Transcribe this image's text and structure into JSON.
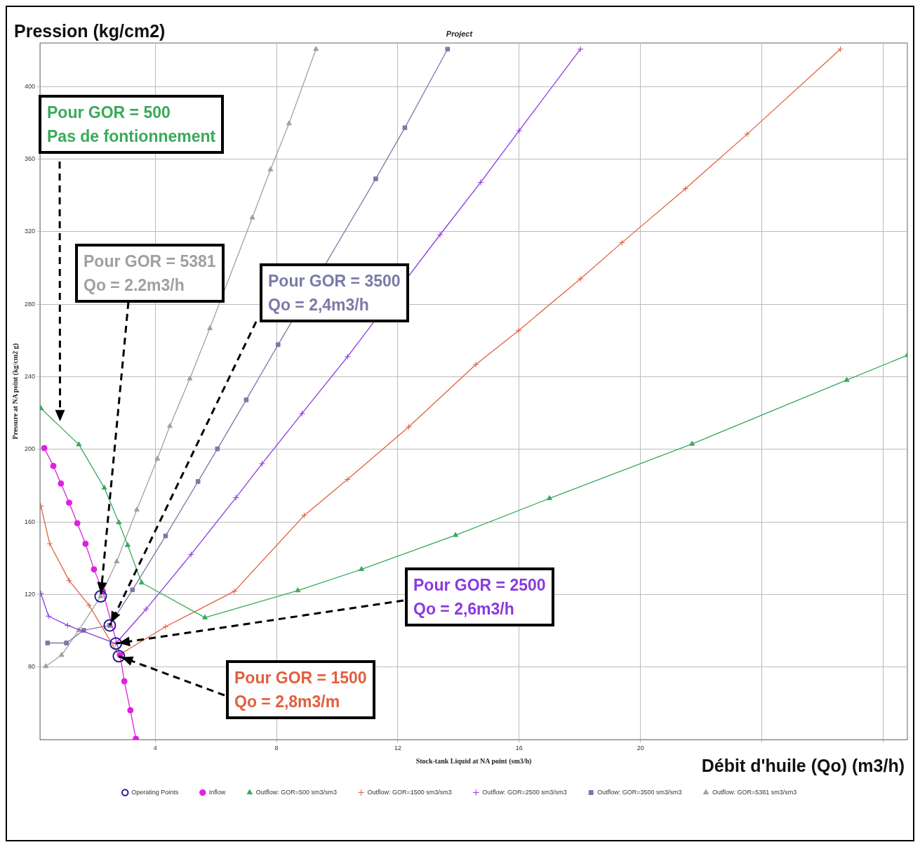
{
  "chart_data": {
    "type": "line",
    "title": "Project",
    "xlabel": "Stock-tank Liquid at NA point (sm3/h)",
    "ylabel": "Pressure at NA point (kg/cm2 g)",
    "xlim": [
      0.2,
      28.8
    ],
    "xticks": [
      4,
      8,
      12,
      16,
      20,
      {
        "value": 24,
        "label": null
      },
      {
        "value": 28,
        "label": null
      }
    ],
    "ylim": [
      40,
      424
    ],
    "yticks": [
      80,
      120,
      160,
      200,
      240,
      280,
      320,
      360,
      400
    ],
    "grid": true,
    "legend": "bottom",
    "line_style": "solid",
    "series": [
      {
        "name": "Operating Points",
        "type": "scatter",
        "marker": "circle",
        "color": "#20208f",
        "x": [
          2.2,
          2.5,
          2.7,
          2.8
        ],
        "values": [
          119,
          103,
          93,
          86
        ]
      },
      {
        "name": "Inflow",
        "marker": "circle",
        "color": "#e020e0",
        "x": [
          0.34,
          0.64,
          0.89,
          1.16,
          1.43,
          1.7,
          1.98,
          2.27,
          2.84,
          2.98,
          3.18,
          3.36
        ],
        "values": [
          200.7,
          190.9,
          181.2,
          170.6,
          159.3,
          148,
          133.9,
          121.8,
          86.6,
          72.2,
          56.2,
          40.5
        ]
      },
      {
        "name": "Outflow: GOR=500 sm3/sm3",
        "marker": "triangle",
        "color": "#3aaa5a",
        "x": [
          0.23,
          1.48,
          2.32,
          2.8,
          3.09,
          3.55,
          5.64,
          8.7,
          10.8,
          13.9,
          17,
          21.7,
          26.8,
          28.8
        ],
        "values": [
          222.6,
          202.7,
          178.8,
          159.7,
          147.2,
          126.5,
          107.3,
          122.2,
          133.9,
          152.7,
          173,
          203,
          238.2,
          251.9
        ]
      },
      {
        "name": "Outflow: GOR=1500 sm3/sm3",
        "marker": "cross",
        "color": "#e06040",
        "x": [
          0.23,
          0.52,
          1.16,
          1.82,
          2.8,
          4.34,
          6.61,
          8.91,
          10.34,
          12.36,
          14.57,
          15.98,
          18.02,
          19.39,
          21.48,
          23.52,
          26.59
        ],
        "values": [
          168.7,
          148,
          127.7,
          114,
          86.6,
          102.3,
          121.8,
          163.6,
          183.5,
          212.4,
          246.8,
          265.5,
          294,
          314,
          343.7,
          373.8,
          420.6
        ]
      },
      {
        "name": "Outflow: GOR=2500 sm3/sm3",
        "marker": "cross",
        "color": "#8a3ae0",
        "x": [
          0.23,
          0.48,
          1.11,
          2.7,
          3.7,
          5.18,
          6.66,
          7.52,
          8.84,
          10.34,
          13.39,
          14.73,
          16,
          18.02
        ],
        "values": [
          120.6,
          108.1,
          103,
          93,
          112,
          142.1,
          173.4,
          192.1,
          219.8,
          251.1,
          318.3,
          347.2,
          375.7,
          420.6
        ]
      },
      {
        "name": "Outflow: GOR=3500 sm3/sm3",
        "marker": "square",
        "color": "#7a7aa8",
        "x": [
          0.45,
          1.07,
          1.64,
          2.5,
          3.25,
          4.34,
          5.41,
          6.05,
          7,
          8.05,
          11.27,
          12.23,
          13.64
        ],
        "values": [
          93.3,
          93.3,
          100.3,
          103,
          122.6,
          152.3,
          182.3,
          200.3,
          227.3,
          257.7,
          349.1,
          377.3,
          420.6
        ]
      },
      {
        "name": "Outflow: GOR=5381 sm3/sm3",
        "marker": "triangle",
        "color": "#a0a0a0",
        "x": [
          0.39,
          0.91,
          1.48,
          2.2,
          2.73,
          3.39,
          4.07,
          4.48,
          5.14,
          5.8,
          7.2,
          7.8,
          8.41,
          9.3
        ],
        "values": [
          80.4,
          86.6,
          100.3,
          119,
          138.2,
          166.7,
          194.8,
          212.8,
          239,
          266.7,
          327.7,
          354.2,
          379.6,
          420.6
        ]
      }
    ],
    "annotations": [
      "Pression (kg/cm2)",
      "Débit d'huile (Qo) (m3/h)",
      {
        "text": "Pour GOR = 500\nPas de fontionnement",
        "x": 0.86,
        "y": 214
      },
      {
        "text": "Pour GOR = 5381\nQo = 2.2m3/h",
        "x": 2.2,
        "y": 119
      },
      {
        "text": "Pour GOR = 3500\nQo = 2,4m3/h",
        "x": 2.5,
        "y": 103
      },
      {
        "text": "Pour GOR = 2500\nQo = 2,6m3/h",
        "x": 2.7,
        "y": 93
      },
      {
        "text": "Pour GOR = 1500\nQo = 2,8m3/m",
        "x": 2.8,
        "y": 86
      }
    ]
  }
}
